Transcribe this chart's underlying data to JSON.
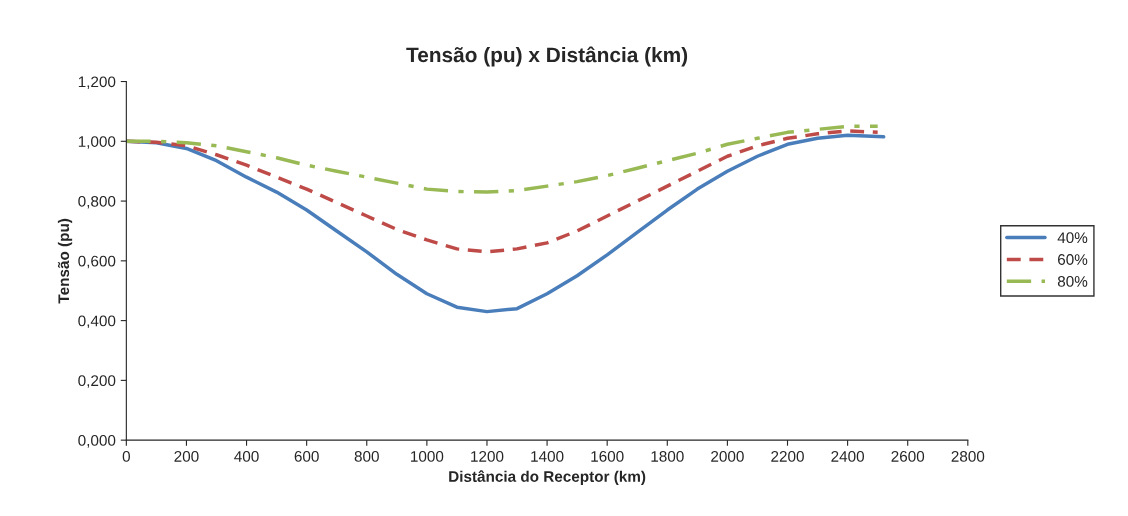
{
  "chart_data": {
    "type": "line",
    "title": "Tensão (pu) x Distância (km)",
    "xlabel": "Distância do Receptor (km)",
    "ylabel": "Tensão (pu)",
    "xlim": [
      0,
      2800
    ],
    "xticks": [
      0,
      200,
      400,
      600,
      800,
      1000,
      1200,
      1400,
      1600,
      1800,
      2000,
      2200,
      2400,
      2600,
      2800
    ],
    "ylim": [
      0,
      1.2
    ],
    "yticks": [
      {
        "value": 0,
        "label": "0,000"
      },
      {
        "value": 0.2,
        "label": "0,200"
      },
      {
        "value": 0.4,
        "label": "0,400"
      },
      {
        "value": 0.6,
        "label": "0,600"
      },
      {
        "value": 0.8,
        "label": "0,800"
      },
      {
        "value": 1.0,
        "label": "1,000"
      },
      {
        "value": 1.2,
        "label": "1,200"
      }
    ],
    "grid": false,
    "legend": "right",
    "marker": "none",
    "series": [
      {
        "name": "40%",
        "color": "#4a7ebb",
        "line_style": "solid",
        "x": [
          0,
          100,
          200,
          300,
          400,
          500,
          600,
          700,
          800,
          900,
          1000,
          1100,
          1200,
          1300,
          1400,
          1500,
          1600,
          1700,
          1800,
          1900,
          2000,
          2100,
          2200,
          2300,
          2400,
          2520
        ],
        "values": [
          1.0,
          0.995,
          0.976,
          0.935,
          0.88,
          0.83,
          0.77,
          0.7,
          0.63,
          0.555,
          0.49,
          0.445,
          0.43,
          0.44,
          0.49,
          0.55,
          0.62,
          0.695,
          0.77,
          0.84,
          0.9,
          0.95,
          0.99,
          1.01,
          1.02,
          1.015
        ]
      },
      {
        "name": "60%",
        "color": "#be4b48",
        "line_style": "dashed",
        "x": [
          0,
          100,
          200,
          300,
          400,
          500,
          600,
          700,
          800,
          900,
          1000,
          1100,
          1200,
          1300,
          1400,
          1500,
          1600,
          1700,
          1800,
          1900,
          2000,
          2100,
          2200,
          2300,
          2400,
          2500
        ],
        "values": [
          1.0,
          0.997,
          0.985,
          0.955,
          0.92,
          0.88,
          0.84,
          0.795,
          0.75,
          0.705,
          0.67,
          0.64,
          0.63,
          0.64,
          0.66,
          0.7,
          0.75,
          0.8,
          0.85,
          0.9,
          0.95,
          0.985,
          1.01,
          1.025,
          1.035,
          1.03
        ]
      },
      {
        "name": "80%",
        "color": "#98b954",
        "line_style": "dashdot",
        "x": [
          0,
          100,
          200,
          300,
          400,
          500,
          600,
          700,
          800,
          900,
          1000,
          1100,
          1200,
          1300,
          1400,
          1500,
          1600,
          1700,
          1800,
          1900,
          2000,
          2100,
          2200,
          2300,
          2400,
          2500
        ],
        "values": [
          1.0,
          1.0,
          0.995,
          0.985,
          0.965,
          0.945,
          0.92,
          0.9,
          0.88,
          0.86,
          0.84,
          0.832,
          0.83,
          0.835,
          0.85,
          0.865,
          0.885,
          0.91,
          0.935,
          0.96,
          0.99,
          1.01,
          1.03,
          1.04,
          1.05,
          1.05
        ]
      }
    ]
  }
}
